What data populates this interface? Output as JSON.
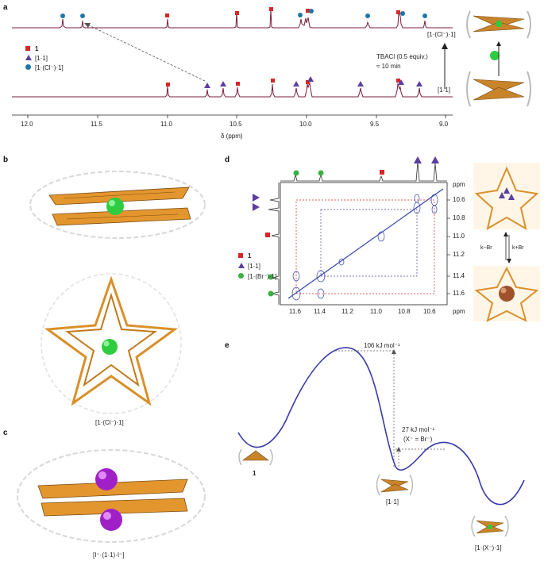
{
  "panels": {
    "a": "a",
    "b": "b",
    "c": "c",
    "d": "d",
    "e": "e"
  },
  "panel_a": {
    "legend": [
      {
        "marker": "square",
        "color": "#d62728",
        "label": "1"
      },
      {
        "marker": "triangle",
        "color": "#5b3fa0",
        "label": "[1·1]"
      },
      {
        "marker": "circle",
        "color": "#1f77a8",
        "label": "[1·(Cl⁻)·1]"
      }
    ],
    "top_trace_label": "[1·(Cl⁻)·1]",
    "bottom_trace_label": "[1·1]",
    "condition_line1": "TBACl (0.5 equiv.)",
    "condition_line2": "≈ 10 min",
    "x_ticks": [
      "12.0",
      "11.5",
      "11.0",
      "10.5",
      "10.0",
      "9.5",
      "9.0"
    ],
    "x_label": "δ (ppm)"
  },
  "panel_b": {
    "caption": "[1·(Cl⁻)·1]"
  },
  "panel_c": {
    "caption": "[I⁻·(1·1)·I⁻]"
  },
  "panel_d": {
    "legend": [
      {
        "marker": "square",
        "color": "#d62728",
        "label": "1"
      },
      {
        "marker": "triangle",
        "color": "#5b3fa0",
        "label": "[1·1]"
      },
      {
        "marker": "circle",
        "color": "#3cb043",
        "label": "[1·(Br⁻)·1]"
      }
    ],
    "y_unit": "ppm",
    "x_unit": "ppm",
    "y_ticks": [
      "10.6",
      "10.8",
      "11.0",
      "11.2",
      "11.4",
      "11.6"
    ],
    "x_ticks": [
      "11.6",
      "11.4",
      "11.2",
      "11.0",
      "10.8",
      "10.6"
    ],
    "k_minus": "k−Br",
    "k_plus": "k+Br"
  },
  "panel_e": {
    "barrier_label": "106 kJ mol⁻¹",
    "second_label": "27 kJ mol⁻¹",
    "second_sub": "(X⁻ = Br⁻)",
    "state1": "1",
    "state2": "[1·1]",
    "state3": "[1·(X⁻)·1]"
  }
}
